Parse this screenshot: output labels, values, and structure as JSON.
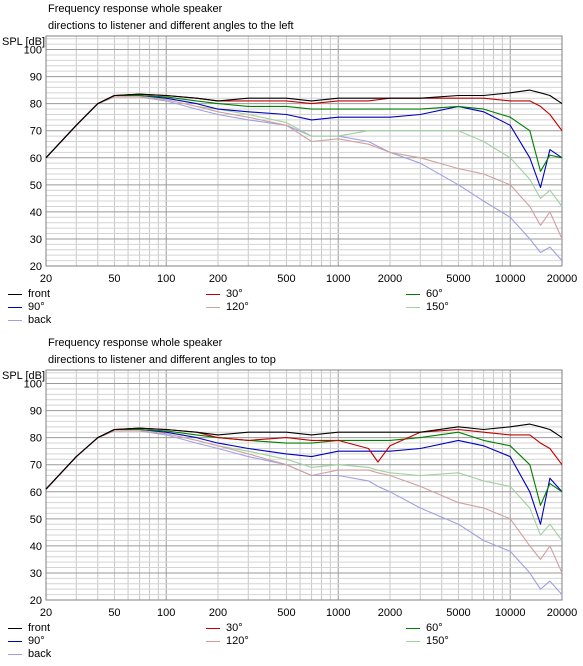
{
  "chart_data": [
    {
      "type": "line",
      "title": "Frequency response whole speaker",
      "subtitle": "directions to listener and different angles to the left",
      "ylabel": "SPL [dB]",
      "xlabel": "",
      "x_scale": "log",
      "xlim": [
        20,
        20000
      ],
      "ylim": [
        20,
        105
      ],
      "grid": true,
      "legend_position": "bottom",
      "x_ticks": [
        "20",
        "50",
        "100",
        "200",
        "500",
        "1000",
        "2000",
        "5000",
        "10000",
        "20000"
      ],
      "y_ticks": [
        "20",
        "30",
        "40",
        "50",
        "60",
        "70",
        "80",
        "90",
        "100"
      ],
      "x": [
        20,
        30,
        40,
        50,
        70,
        100,
        150,
        200,
        300,
        500,
        700,
        1000,
        1500,
        2000,
        3000,
        5000,
        7000,
        10000,
        13000,
        15000,
        17000,
        20000
      ],
      "series": [
        {
          "name": "front",
          "color": "#000000",
          "values": [
            60,
            72,
            80,
            83,
            83.5,
            83,
            82,
            81,
            82,
            82,
            81,
            82,
            82,
            82,
            82,
            83,
            83,
            84,
            85,
            84,
            83,
            80
          ]
        },
        {
          "name": "30°",
          "color": "#c00000",
          "values": [
            60,
            72,
            80,
            83,
            83.5,
            83,
            82,
            81,
            81,
            81,
            80,
            81,
            81,
            82,
            82,
            82,
            82,
            81,
            81,
            79,
            76,
            70
          ]
        },
        {
          "name": "60°",
          "color": "#008000",
          "values": [
            60,
            72,
            80,
            83,
            83,
            82.5,
            81,
            80,
            79,
            79,
            78,
            78,
            78,
            78,
            78,
            79,
            78,
            75,
            70,
            55,
            61,
            60
          ]
        },
        {
          "name": "90°",
          "color": "#0000c0",
          "values": [
            60,
            72,
            80,
            83,
            83,
            82,
            80,
            78,
            77,
            76,
            74,
            75,
            75,
            75,
            76,
            79,
            77,
            72,
            60,
            49,
            63,
            60
          ]
        },
        {
          "name": "120°",
          "color": "#d0a0a0",
          "values": [
            60,
            72,
            80,
            82.5,
            82.5,
            81.5,
            79,
            77,
            75,
            72,
            66,
            67,
            65,
            62,
            60,
            56,
            54,
            50,
            42,
            35,
            40,
            30
          ]
        },
        {
          "name": "150°",
          "color": "#a0d0a0",
          "values": [
            60,
            72,
            80,
            82.5,
            82.5,
            81.5,
            79,
            78,
            76,
            73,
            68,
            68,
            70,
            70,
            70,
            70,
            66,
            60,
            52,
            45,
            48,
            42
          ]
        },
        {
          "name": "back",
          "color": "#a0a0e0",
          "values": [
            60,
            72,
            80,
            82.5,
            82.5,
            81,
            78,
            76,
            74,
            72,
            68,
            68,
            66,
            62,
            58,
            50,
            44,
            38,
            30,
            25,
            27,
            22
          ]
        }
      ]
    },
    {
      "type": "line",
      "title": "Frequency response whole speaker",
      "subtitle": "directions to listener and different angles to top",
      "ylabel": "SPL [dB]",
      "xlabel": "",
      "x_scale": "log",
      "xlim": [
        20,
        20000
      ],
      "ylim": [
        20,
        105
      ],
      "grid": true,
      "legend_position": "bottom",
      "x_ticks": [
        "20",
        "50",
        "100",
        "200",
        "500",
        "1000",
        "2000",
        "5000",
        "10000",
        "20000"
      ],
      "y_ticks": [
        "20",
        "30",
        "40",
        "50",
        "60",
        "70",
        "80",
        "90",
        "100"
      ],
      "x": [
        20,
        30,
        40,
        50,
        70,
        100,
        150,
        200,
        300,
        500,
        700,
        1000,
        1500,
        1700,
        2000,
        3000,
        5000,
        7000,
        10000,
        13000,
        15000,
        17000,
        20000
      ],
      "series": [
        {
          "name": "front",
          "color": "#000000",
          "values": [
            61,
            73,
            80,
            83,
            83.5,
            83,
            82,
            81,
            82,
            82,
            81,
            82,
            82,
            82,
            82,
            82,
            84,
            83,
            84,
            85,
            84,
            83,
            80
          ]
        },
        {
          "name": "30°",
          "color": "#c00000",
          "values": [
            61,
            73,
            80,
            83,
            83.5,
            83,
            82,
            80,
            79,
            80,
            79,
            79,
            76,
            71,
            77,
            82,
            83,
            82,
            81,
            81,
            78,
            76,
            70
          ]
        },
        {
          "name": "60°",
          "color": "#008000",
          "values": [
            61,
            73,
            80,
            83,
            83,
            82.5,
            81,
            80,
            79,
            78,
            78,
            79,
            79,
            79,
            79,
            80,
            82,
            79,
            77,
            70,
            55,
            63,
            60
          ]
        },
        {
          "name": "90°",
          "color": "#0000c0",
          "values": [
            61,
            73,
            80,
            83,
            83,
            82,
            80,
            78,
            76,
            74,
            73,
            75,
            75,
            75,
            75,
            76,
            79,
            77,
            73,
            60,
            48,
            65,
            60
          ]
        },
        {
          "name": "120°",
          "color": "#d0a0a0",
          "values": [
            61,
            73,
            80,
            82.5,
            82.5,
            81.5,
            79,
            77,
            74,
            70,
            66,
            68,
            68,
            67,
            66,
            62,
            56,
            54,
            50,
            40,
            35,
            40,
            30
          ]
        },
        {
          "name": "150°",
          "color": "#a0d0a0",
          "values": [
            61,
            73,
            80,
            82.5,
            82.5,
            81.5,
            79,
            77,
            75,
            72,
            69,
            70,
            69,
            68,
            67,
            66,
            67,
            64,
            62,
            54,
            44,
            48,
            42
          ]
        },
        {
          "name": "back",
          "color": "#a0a0e0",
          "values": [
            61,
            73,
            80,
            82.5,
            82.5,
            81,
            78,
            76,
            73,
            70,
            66,
            66,
            64,
            62,
            60,
            54,
            48,
            42,
            38,
            30,
            24,
            27,
            22
          ]
        }
      ]
    }
  ]
}
